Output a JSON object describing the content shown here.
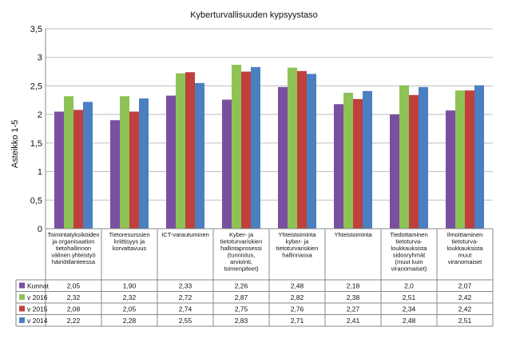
{
  "chart_data": {
    "type": "bar",
    "title": "Kyberturvallisuuden kypsyystaso",
    "ylabel": "Asteikko 1-5",
    "ylim": [
      0,
      3.5
    ],
    "yticks": [
      "0",
      "0,5",
      "1",
      "1,5",
      "2",
      "2,5",
      "3",
      "3,5"
    ],
    "grid": true,
    "legend": "table-below",
    "categories": [
      [
        "Toimintatyksiköiden",
        "ja organisaation",
        "tietohallinnon",
        "välinen yhteistyö",
        "häiriötilanteessa"
      ],
      [
        "Tietoresurssien",
        "kriittisyys ja",
        "korvattavuus"
      ],
      [
        "ICT-varautuminen"
      ],
      [
        "Kyber- ja",
        "tietoturvariskien",
        "hallintaprosessi",
        "(tunnistus,",
        "arviointi,",
        "toimenpiteet)"
      ],
      [
        "Yhteistoiminta",
        "kyber- ja",
        "tietoturvariskien",
        "hallinnassa"
      ],
      [
        "Yhteistoiminta"
      ],
      [
        "Tiedottaminen",
        "tietoturva-",
        "loukkauksista",
        "sidosryhmät",
        "(muut kuin",
        "viranomaiset)"
      ],
      [
        "Ilmoittaminen",
        "tietoturva-",
        "loukkauksista",
        "muut",
        "viranomaiset"
      ]
    ],
    "series": [
      {
        "name": "Kunnat",
        "color": "#7a4fa0",
        "values": [
          2.05,
          1.9,
          2.33,
          2.26,
          2.48,
          2.18,
          2.0,
          2.07
        ],
        "labels": [
          "2,05",
          "1,90",
          "2,33",
          "2,26",
          "2,48",
          "2,18",
          "2,0",
          "2,07"
        ]
      },
      {
        "name": "v 2016",
        "color": "#8dc356",
        "values": [
          2.32,
          2.32,
          2.72,
          2.87,
          2.82,
          2.38,
          2.51,
          2.42
        ],
        "labels": [
          "2,32",
          "2,32",
          "2,72",
          "2,87",
          "2,82",
          "2,38",
          "2,51",
          "2,42"
        ]
      },
      {
        "name": "v 2015",
        "color": "#c0403d",
        "values": [
          2.08,
          2.05,
          2.74,
          2.75,
          2.76,
          2.27,
          2.34,
          2.42
        ],
        "labels": [
          "2,08",
          "2,05",
          "2,74",
          "2,75",
          "2,76",
          "2,27",
          "2,34",
          "2,42"
        ]
      },
      {
        "name": "v 2014",
        "color": "#4a7fc1",
        "values": [
          2.22,
          2.28,
          2.55,
          2.83,
          2.71,
          2.41,
          2.48,
          2.51
        ],
        "labels": [
          "2,22",
          "2,28",
          "2,55",
          "2,83",
          "2,71",
          "2,41",
          "2,48",
          "2,51"
        ]
      }
    ]
  }
}
